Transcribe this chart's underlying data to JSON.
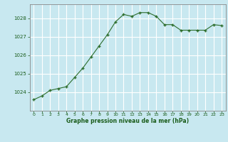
{
  "x": [
    0,
    1,
    2,
    3,
    4,
    5,
    6,
    7,
    8,
    9,
    10,
    11,
    12,
    13,
    14,
    15,
    16,
    17,
    18,
    19,
    20,
    21,
    22,
    23
  ],
  "y": [
    1023.6,
    1023.8,
    1024.1,
    1024.2,
    1024.3,
    1024.8,
    1025.3,
    1025.9,
    1026.5,
    1027.1,
    1027.8,
    1028.2,
    1028.1,
    1028.3,
    1028.3,
    1028.1,
    1027.65,
    1027.65,
    1027.35,
    1027.35,
    1027.35,
    1027.35,
    1027.65,
    1027.6
  ],
  "line_color": "#2d6e2d",
  "marker": "+",
  "marker_size": 3.5,
  "bg_color": "#c8e8f0",
  "grid_color": "#ffffff",
  "xlabel": "Graphe pression niveau de la mer (hPa)",
  "xlabel_color": "#1a5c1a",
  "tick_color": "#1a5c1a",
  "axis_color": "#888888",
  "ylim": [
    1023.0,
    1028.75
  ],
  "yticks": [
    1024,
    1025,
    1026,
    1027,
    1028
  ],
  "xlim": [
    -0.5,
    23.5
  ],
  "xticks": [
    0,
    1,
    2,
    3,
    4,
    5,
    6,
    7,
    8,
    9,
    10,
    11,
    12,
    13,
    14,
    15,
    16,
    17,
    18,
    19,
    20,
    21,
    22,
    23
  ]
}
